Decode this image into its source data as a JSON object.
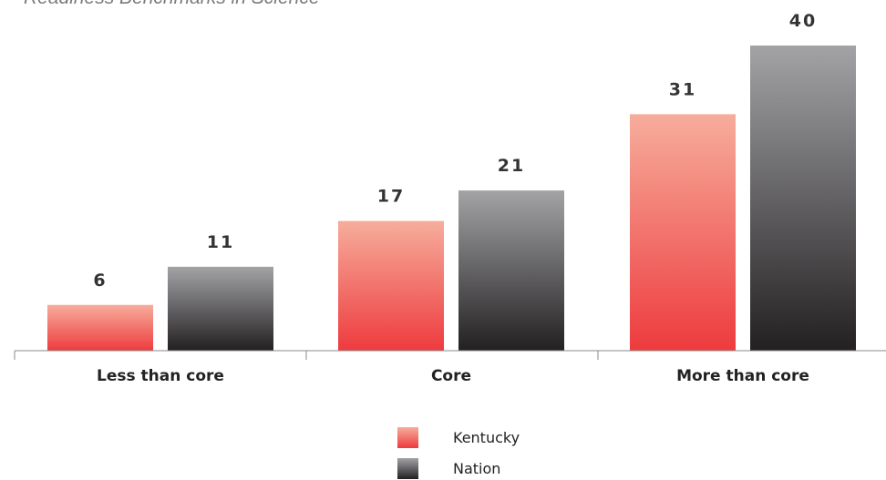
{
  "chart_data": {
    "type": "bar",
    "title": "Readiness Benchmarks in Science",
    "categories": [
      "Less than core",
      "Core",
      "More than core"
    ],
    "series": [
      {
        "name": "Kentucky",
        "values": [
          6,
          17,
          31
        ]
      },
      {
        "name": "Nation",
        "values": [
          11,
          21,
          40
        ]
      }
    ],
    "ylim": [
      0,
      40
    ],
    "grid": false,
    "legend_position": "bottom-center"
  },
  "colors": {
    "kentucky_top": "#f6ad9c",
    "kentucky_bottom": "#ee3b3e",
    "nation_top": "#a3a3a6",
    "nation_bottom": "#232021",
    "axis": "#8a8a8a"
  }
}
